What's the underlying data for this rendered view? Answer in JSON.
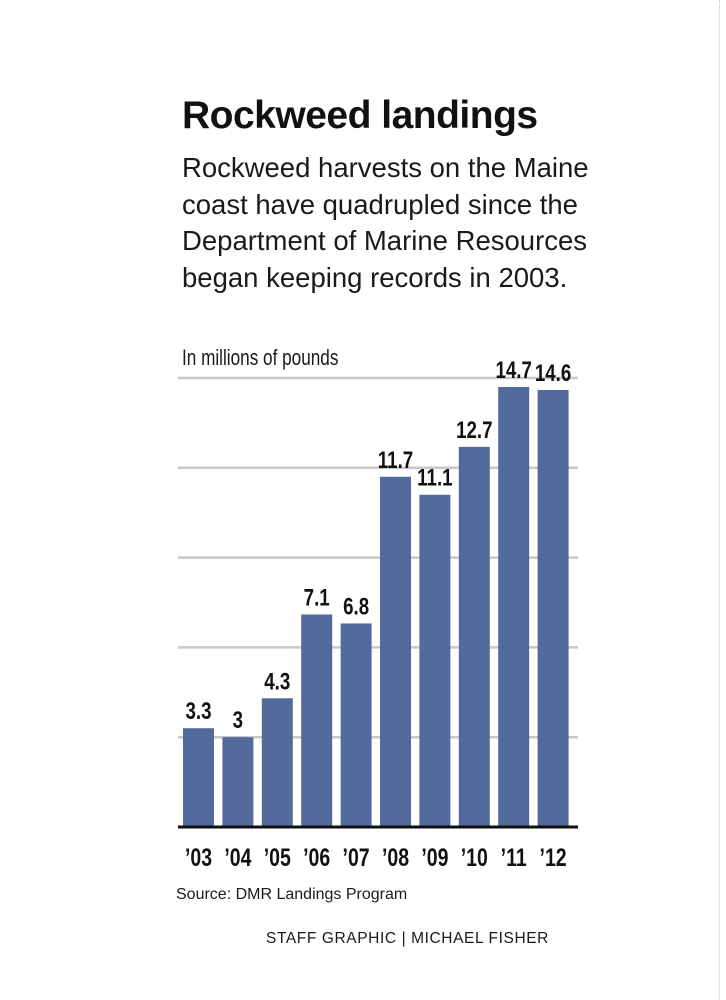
{
  "header": {
    "title": "Rockweed landings",
    "subtitle": "Rockweed harvests on the Maine coast have quadrupled since the Department of Marine Resources began keeping records in 2003."
  },
  "footer": {
    "source": "Source: DMR Landings Program",
    "credit": "STAFF GRAPHIC | MICHAEL FISHER"
  },
  "colors": {
    "bar": "#536b9c",
    "grid": "#c8c8c8",
    "axis": "#111111",
    "text": "#111111"
  },
  "chart_data": {
    "type": "bar",
    "title": "Rockweed landings",
    "ylabel": "In millions of pounds",
    "xlabel": "",
    "categories": [
      "’03",
      "’04",
      "’05",
      "’06",
      "’07",
      "’08",
      "’09",
      "’10",
      "’11",
      "’12"
    ],
    "values": [
      3.3,
      3,
      4.3,
      7.1,
      6.8,
      11.7,
      11.1,
      12.7,
      14.7,
      14.6
    ],
    "value_labels": [
      "3.3",
      "3",
      "4.3",
      "7.1",
      "6.8",
      "11.7",
      "11.1",
      "12.7",
      "14.7",
      "14.6"
    ],
    "ylim": [
      0,
      15
    ],
    "gridlines": [
      3,
      6,
      9,
      12,
      15
    ],
    "grid": true,
    "legend": "none"
  }
}
